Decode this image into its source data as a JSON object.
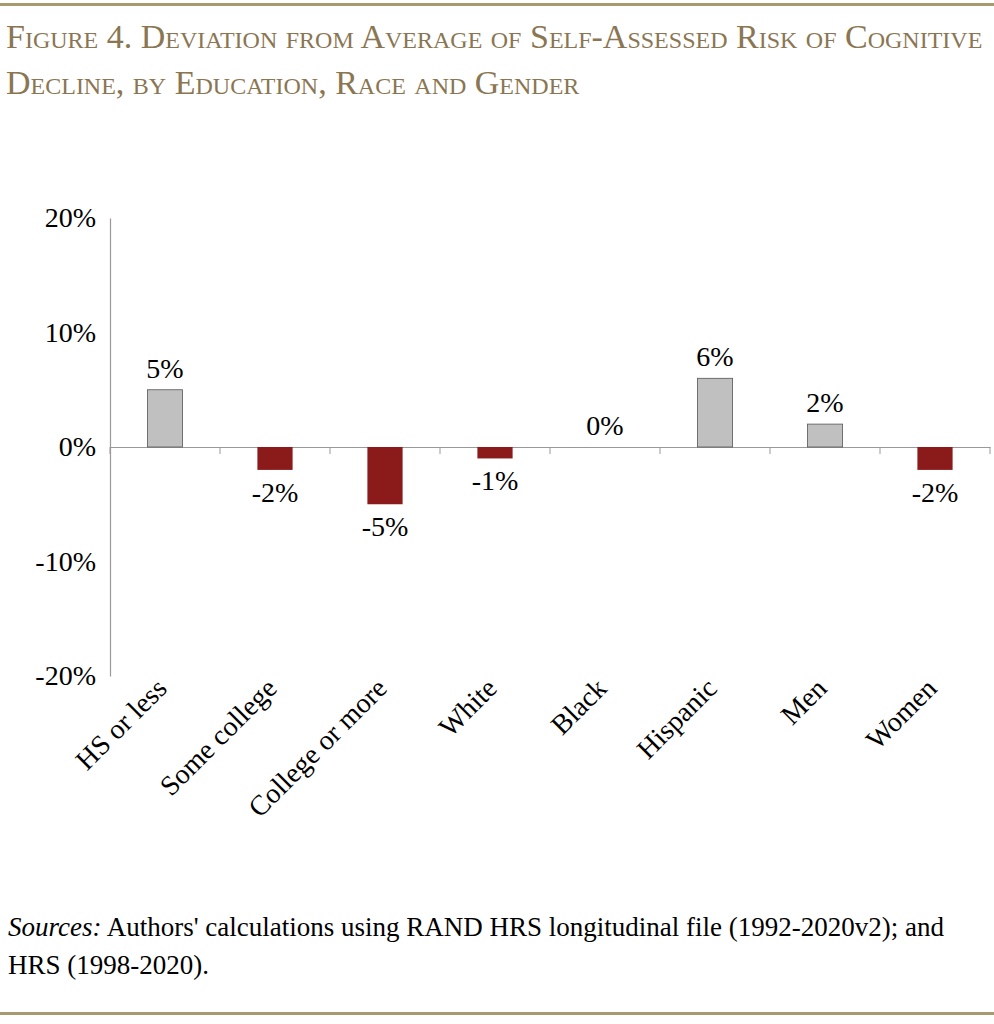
{
  "chart_data": {
    "type": "bar",
    "title": "Figure 4. Deviation from Average of Self-Assessed Risk of Cognitive Decline, by Education, Race and Gender",
    "categories": [
      "HS or less",
      "Some college",
      "College or more",
      "White",
      "Black",
      "Hispanic",
      "Men",
      "Women"
    ],
    "values": [
      5,
      -2,
      -5,
      -1,
      0,
      6,
      2,
      -2
    ],
    "value_labels": [
      "5%",
      "-2%",
      "-5%",
      "-1%",
      "0%",
      "6%",
      "2%",
      "-2%"
    ],
    "colors": [
      "#c0c0c0",
      "#8b1a1a",
      "#8b1a1a",
      "#8b1a1a",
      "#c0c0c0",
      "#c0c0c0",
      "#c0c0c0",
      "#8b1a1a"
    ],
    "ylim": [
      -20,
      20
    ],
    "yticks": [
      {
        "value": -20,
        "label": "-20%"
      },
      {
        "value": -10,
        "label": "-10%"
      },
      {
        "value": 0,
        "label": "0%"
      },
      {
        "value": 10,
        "label": "10%"
      },
      {
        "value": 20,
        "label": "20%"
      }
    ],
    "grid": false,
    "data_labels": true,
    "source_label": "Sources:",
    "source": "Authors' calculations using RAND HRS longitudinal file (1992-2020v2); and HRS (1998-2020)."
  }
}
